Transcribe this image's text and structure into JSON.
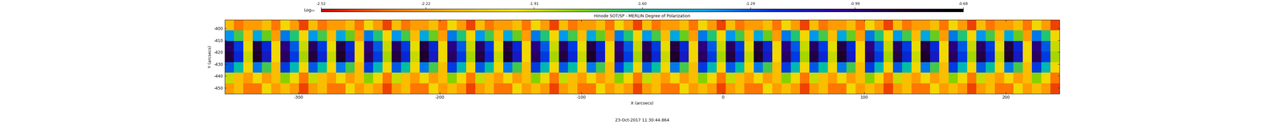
{
  "chart_data": {
    "type": "heatmap",
    "title": "Hinode SOT/SP - MERLIN Degree of Polarization",
    "x_label": "X (arcsecs)",
    "y_label": "Y (arcsecs)",
    "annotation": "23-Oct-2017 11:30:44.864",
    "xlim": [
      -352,
      238
    ],
    "ylim": [
      -455,
      -393
    ],
    "xticks": [
      -300,
      -200,
      -100,
      0,
      100,
      200
    ],
    "yticks": [
      -450,
      -440,
      -430,
      -420,
      -410,
      -400
    ],
    "colorbar_label": "Log₁₀",
    "colorbar_range": [
      -2.52,
      -0.68
    ],
    "colorbar_ticks": [
      -2.52,
      -2.22,
      -1.91,
      {
        "value": -1.6,
        "label": "-1.60"
      },
      -1.29,
      -0.99,
      -0.68
    ],
    "cells": [
      [
        -2.2,
        -2.1,
        -2.3,
        -2.3,
        -2.0,
        -2.2,
        -2.1,
        -2.2,
        -2.4,
        -2.2,
        -2.1,
        -2.3,
        -2.3,
        -2.0,
        -2.2,
        -2.1,
        -2.2,
        -2.4,
        -2.2,
        -2.1,
        -2.3,
        -2.3,
        -2.0,
        -2.2,
        -2.1,
        -2.2,
        -2.4,
        -2.2,
        -2.1,
        -2.3,
        -2.3,
        -2.0,
        -2.2,
        -2.1,
        -2.2,
        -2.4,
        -2.2,
        -2.1,
        -2.3,
        -2.3,
        -2.0,
        -2.2,
        -2.1,
        -2.2,
        -2.4,
        -2.2,
        -2.1,
        -2.3,
        -2.3,
        -2.0,
        -2.2,
        -2.1,
        -2.2,
        -2.4,
        -2.2,
        -2.1,
        -2.3,
        -2.3,
        -2.0,
        -2.2,
        -2.1,
        -2.2,
        -2.4,
        -2.2,
        -2.1,
        -2.3,
        -2.3,
        -2.0,
        -2.2,
        -2.1,
        -2.2,
        -2.4,
        -2.2,
        -2.1,
        -2.3,
        -2.3,
        -2.0,
        -2.2,
        -2.1,
        -2.2,
        -2.4,
        -2.2,
        -2.1,
        -2.3,
        -2.3,
        -2.0,
        -2.2,
        -2.1,
        -2.2,
        -2.4
      ],
      [
        -1.9,
        -2.1,
        -2.2,
        -2.0,
        -2.2,
        -2.1,
        -1.8,
        -2.0,
        -2.3,
        -1.9,
        -2.1,
        -2.2,
        -2.0,
        -2.2,
        -2.1,
        -1.8,
        -2.0,
        -2.3,
        -1.9,
        -2.1,
        -2.2,
        -2.0,
        -2.2,
        -2.1,
        -1.8,
        -2.0,
        -2.3,
        -1.9,
        -2.1,
        -2.2,
        -2.0,
        -2.2,
        -2.1,
        -1.8,
        -2.0,
        -2.3,
        -1.9,
        -2.1,
        -2.2,
        -2.0,
        -2.2,
        -2.1,
        -1.8,
        -2.0,
        -2.3,
        -1.9,
        -2.1,
        -2.2,
        -2.0,
        -2.2,
        -2.1,
        -1.8,
        -2.0,
        -2.3,
        -1.9,
        -2.1,
        -2.2,
        -2.0,
        -2.2,
        -2.1,
        -1.8,
        -2.0,
        -2.3,
        -1.9,
        -2.1,
        -2.2,
        -2.0,
        -2.2,
        -2.1,
        -1.8,
        -2.0,
        -2.3,
        -1.9,
        -2.1,
        -2.2,
        -2.0,
        -2.2,
        -2.1,
        -1.8,
        -2.0,
        -2.3,
        -1.9,
        -2.1,
        -2.2,
        -2.0,
        -2.2,
        -2.1,
        -1.8,
        -2.0,
        -2.3
      ],
      [
        -1.3,
        -1.6,
        -2.0,
        -1.35,
        -1.7,
        -2.1,
        -1.25,
        -1.55,
        -2.0,
        -1.3,
        -1.6,
        -2.0,
        -1.35,
        -1.7,
        -2.1,
        -1.25,
        -1.55,
        -2.0,
        -1.3,
        -1.6,
        -2.0,
        -1.35,
        -1.7,
        -2.1,
        -1.25,
        -1.55,
        -2.0,
        -1.3,
        -1.6,
        -2.0,
        -1.35,
        -1.7,
        -2.1,
        -1.25,
        -1.55,
        -2.0,
        -1.3,
        -1.6,
        -2.0,
        -1.35,
        -1.7,
        -2.1,
        -1.25,
        -1.55,
        -2.0,
        -1.3,
        -1.6,
        -2.0,
        -1.35,
        -1.7,
        -2.1,
        -1.25,
        -1.55,
        -2.0,
        -1.3,
        -1.6,
        -2.0,
        -1.35,
        -1.7,
        -2.1,
        -1.25,
        -1.55,
        -2.0,
        -1.3,
        -1.6,
        -2.0,
        -1.35,
        -1.7,
        -2.1,
        -1.25,
        -1.55,
        -2.0,
        -1.3,
        -1.6,
        -2.0,
        -1.35,
        -1.7,
        -2.1,
        -1.25,
        -1.55,
        -2.0,
        -1.3,
        -1.6,
        -2.0,
        -1.35,
        -1.7,
        -2.1,
        -1.25,
        -1.55,
        -2.0
      ],
      [
        -0.9,
        -1.2,
        -1.9,
        -0.85,
        -1.15,
        -2.0,
        -0.95,
        -1.25,
        -1.85,
        -0.9,
        -1.2,
        -1.9,
        -0.85,
        -1.15,
        -2.0,
        -0.95,
        -1.25,
        -1.85,
        -0.9,
        -1.2,
        -1.9,
        -0.85,
        -1.15,
        -2.0,
        -0.95,
        -1.25,
        -1.85,
        -0.9,
        -1.2,
        -1.9,
        -0.85,
        -1.15,
        -2.0,
        -0.95,
        -1.25,
        -1.85,
        -0.9,
        -1.2,
        -1.9,
        -0.85,
        -1.15,
        -2.0,
        -0.95,
        -1.25,
        -1.85,
        -0.9,
        -1.2,
        -1.9,
        -0.85,
        -1.15,
        -2.0,
        -0.95,
        -1.25,
        -1.85,
        -0.9,
        -1.2,
        -1.9,
        -0.85,
        -1.15,
        -2.0,
        -0.95,
        -1.25,
        -1.85,
        -0.9,
        -1.2,
        -1.9,
        -0.85,
        -1.15,
        -2.0,
        -0.95,
        -1.25,
        -1.85,
        -0.9,
        -1.2,
        -1.9,
        -0.85,
        -1.15,
        -2.0,
        -0.95,
        -1.25,
        -1.85,
        -0.9,
        -1.2,
        -1.9,
        -0.85,
        -1.15,
        -2.0,
        -0.95,
        -1.25,
        -1.85
      ],
      [
        -0.95,
        -1.25,
        -1.95,
        -0.9,
        -1.2,
        -2.0,
        -1.0,
        -1.3,
        -1.9,
        -0.95,
        -1.25,
        -1.95,
        -0.9,
        -1.2,
        -2.0,
        -1.0,
        -1.3,
        -1.9,
        -0.95,
        -1.25,
        -1.95,
        -0.9,
        -1.2,
        -2.0,
        -1.0,
        -1.3,
        -1.9,
        -0.95,
        -1.25,
        -1.95,
        -0.9,
        -1.2,
        -2.0,
        -1.0,
        -1.3,
        -1.9,
        -0.95,
        -1.25,
        -1.95,
        -0.9,
        -1.2,
        -2.0,
        -1.0,
        -1.3,
        -1.9,
        -0.95,
        -1.25,
        -1.95,
        -0.9,
        -1.2,
        -2.0,
        -1.0,
        -1.3,
        -1.9,
        -0.95,
        -1.25,
        -1.95,
        -0.9,
        -1.2,
        -2.0,
        -1.0,
        -1.3,
        -1.9,
        -0.95,
        -1.25,
        -1.95,
        -0.9,
        -1.2,
        -2.0,
        -1.0,
        -1.3,
        -1.9,
        -0.95,
        -1.25,
        -1.95,
        -0.9,
        -1.2,
        -2.0,
        -1.0,
        -1.3,
        -1.9,
        -0.95,
        -1.25,
        -1.95,
        -0.9,
        -1.2,
        -2.0,
        -1.0,
        -1.3,
        -1.9
      ],
      [
        -1.4,
        -1.7,
        -2.1,
        -1.45,
        -1.75,
        -2.2,
        -1.35,
        -1.65,
        -2.0,
        -1.4,
        -1.7,
        -2.1,
        -1.45,
        -1.75,
        -2.2,
        -1.35,
        -1.65,
        -2.0,
        -1.4,
        -1.7,
        -2.1,
        -1.45,
        -1.75,
        -2.2,
        -1.35,
        -1.65,
        -2.0,
        -1.4,
        -1.7,
        -2.1,
        -1.45,
        -1.75,
        -2.2,
        -1.35,
        -1.65,
        -2.0,
        -1.4,
        -1.7,
        -2.1,
        -1.45,
        -1.75,
        -2.2,
        -1.35,
        -1.65,
        -2.0,
        -1.4,
        -1.7,
        -2.1,
        -1.45,
        -1.75,
        -2.2,
        -1.35,
        -1.65,
        -2.0,
        -1.4,
        -1.7,
        -2.1,
        -1.45,
        -1.75,
        -2.2,
        -1.35,
        -1.65,
        -2.0,
        -1.4,
        -1.7,
        -2.1,
        -1.45,
        -1.75,
        -2.2,
        -1.35,
        -1.65,
        -2.0,
        -1.4,
        -1.7,
        -2.1,
        -1.45,
        -1.75,
        -2.2,
        -1.35,
        -1.65,
        -2.0,
        -1.4,
        -1.7,
        -2.1,
        -1.45,
        -1.75,
        -2.2,
        -1.35,
        -1.65,
        -2.0
      ],
      [
        -2.1,
        -2.3,
        -2.2,
        -2.2,
        -2.1,
        -2.3,
        -2.0,
        -2.2,
        -2.4,
        -2.1,
        -2.3,
        -2.2,
        -2.2,
        -2.1,
        -2.3,
        -2.0,
        -2.2,
        -2.4,
        -2.1,
        -2.3,
        -2.2,
        -2.2,
        -2.1,
        -2.3,
        -2.0,
        -2.2,
        -2.4,
        -2.1,
        -2.3,
        -2.2,
        -2.2,
        -2.1,
        -2.3,
        -2.0,
        -2.2,
        -2.4,
        -2.1,
        -2.3,
        -2.2,
        -2.2,
        -2.1,
        -2.3,
        -2.0,
        -2.2,
        -2.4,
        -2.1,
        -2.3,
        -2.2,
        -2.2,
        -2.1,
        -2.3,
        -2.0,
        -2.2,
        -2.4,
        -2.1,
        -2.3,
        -2.2,
        -2.2,
        -2.1,
        -2.3,
        -2.0,
        -2.2,
        -2.4,
        -2.1,
        -2.3,
        -2.2,
        -2.2,
        -2.1,
        -2.3,
        -2.0,
        -2.2,
        -2.4,
        -2.1,
        -2.3,
        -2.2,
        -2.2,
        -2.1,
        -2.3,
        -2.0,
        -2.2,
        -2.4,
        -2.1,
        -2.3,
        -2.2,
        -2.2,
        -2.1,
        -2.3,
        -2.0,
        -2.2,
        -2.4
      ]
    ]
  }
}
